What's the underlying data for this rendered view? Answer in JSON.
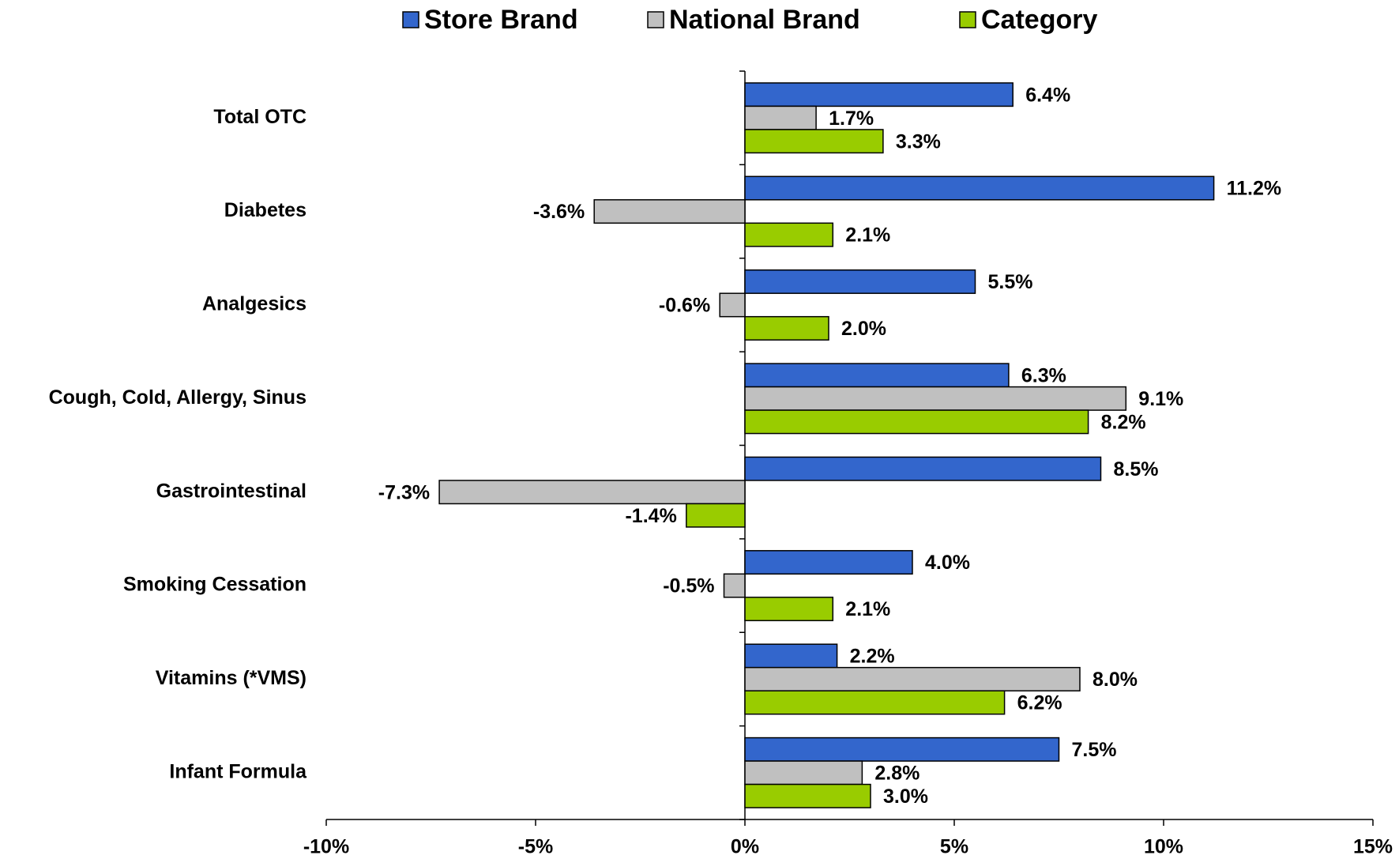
{
  "chart_data": {
    "type": "hbar",
    "categories": [
      "Total OTC",
      "Diabetes",
      "Analgesics",
      "Cough, Cold, Allergy, Sinus",
      "Gastrointestinal",
      "Smoking Cessation",
      "Vitamins (*VMS)",
      "Infant Formula"
    ],
    "series": [
      {
        "name": "Store Brand",
        "color": "#3366cc",
        "values": [
          6.4,
          11.2,
          5.5,
          6.3,
          8.5,
          4.0,
          2.2,
          7.5
        ],
        "value_labels": [
          "6.4%",
          "11.2%",
          "5.5%",
          "6.3%",
          "8.5%",
          "4.0%",
          "2.2%",
          "7.5%"
        ]
      },
      {
        "name": "National Brand",
        "color": "#c0c0c0",
        "values": [
          1.7,
          -3.6,
          -0.6,
          9.1,
          -7.3,
          -0.5,
          8.0,
          2.8
        ],
        "value_labels": [
          "1.7%",
          "-3.6%",
          "-0.6%",
          "9.1%",
          "-7.3%",
          "-0.5%",
          "8.0%",
          "2.8%"
        ]
      },
      {
        "name": "Category",
        "color": "#99cc00",
        "values": [
          3.3,
          2.1,
          2.0,
          8.2,
          -1.4,
          2.1,
          6.2,
          3.0
        ],
        "value_labels": [
          "3.3%",
          "2.1%",
          "2.0%",
          "8.2%",
          "-1.4%",
          "2.1%",
          "6.2%",
          "3.0%"
        ]
      }
    ],
    "xlim": [
      -10,
      15
    ],
    "xticks": [
      {
        "value": -10,
        "label": "-10%"
      },
      {
        "value": -5,
        "label": "-5%"
      },
      {
        "value": 0,
        "label": "0%"
      },
      {
        "value": 5,
        "label": "5%"
      },
      {
        "value": 10,
        "label": "10%"
      },
      {
        "value": 15,
        "label": "15%"
      }
    ],
    "legend": "top"
  }
}
